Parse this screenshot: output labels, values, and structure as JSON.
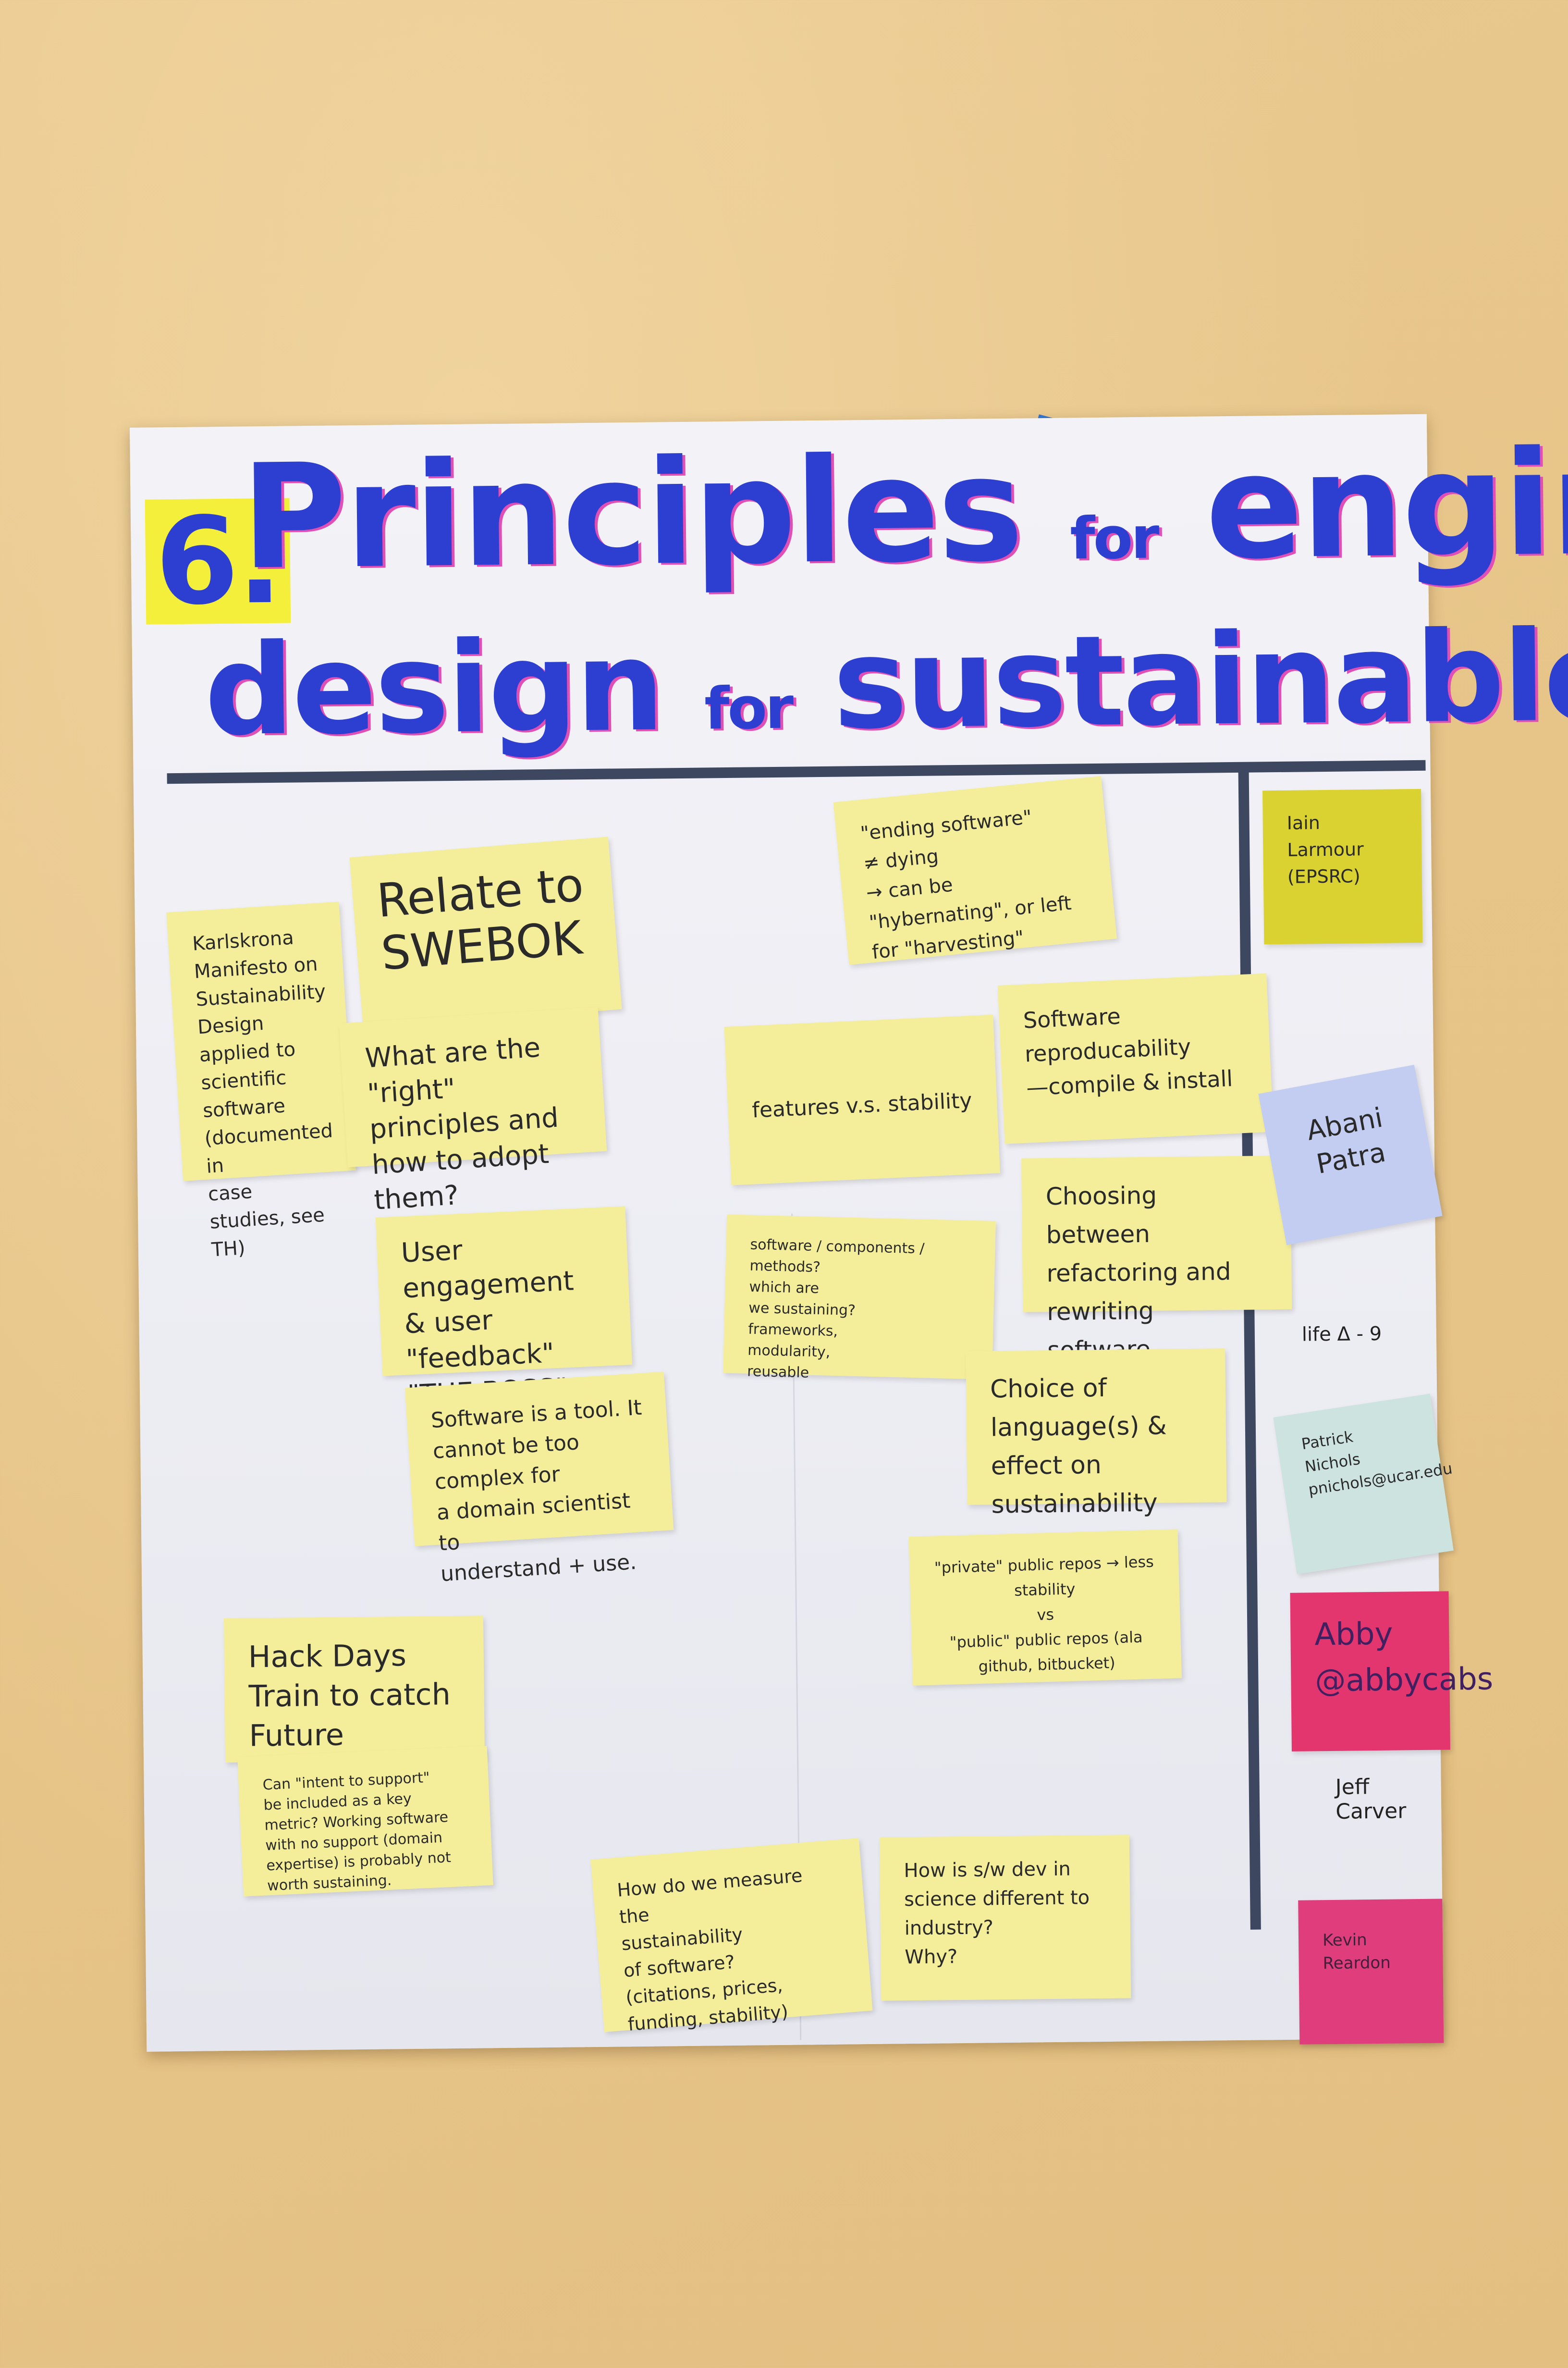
{
  "poster": {
    "number": "6.",
    "title_line1_a": "Principles",
    "title_line1_for": "for",
    "title_line1_b": "engineering",
    "title_line2_a": "design",
    "title_line2_for": "for",
    "title_line2_b": "sustainable software"
  },
  "notes": {
    "karlskrona": "Karlskrona\nManifesto on\nSustainability\nDesign\napplied to\nscientific software\n(documented in\ncase studies, see TH)",
    "swebok": "Relate to\nSWEBOK",
    "right_principles": "What are the \"right\"\nprinciples and\nhow to adopt them?",
    "ending_software": "\"ending software\"\n≠ dying\n→ can be \"hybernating\", or left\nfor \"harvesting\"",
    "features_stability": "features v.s. stability",
    "reproducibility": "Software\nreproducability\n—compile & install",
    "refactoring": "Choosing between\nrefactoring and\nrewriting software.",
    "user_engagement": "User engagement\n& user \"feedback\"\n\"THE BOSS\"",
    "software_tool": "Software is a tool. It\ncannot be too complex for\na domain scientist to\nunderstand + use.",
    "sustaining": "software / components / methods?\nwhich are\nwe sustaining?\nframeworks,\nmodularity,\nreusable",
    "language": "Choice of\nlanguage(s) &\neffect on sustainability",
    "repos": "\"private\" public repos → less stability\nvs\n\"public\" public repos (ala github, bitbucket)",
    "hack_days": "Hack Days\nTrain to catch\nFuture Developers",
    "intent_support": "Can \"intent to support\"\nbe included as a key\nmetric? Working software\nwith no support (domain\nexpertise) is probably not\nworth sustaining.",
    "measure": "How do we measure the\nsustainability\nof software?\n(citations, prices, funding, stability)",
    "sw_dev_science": "How is s/w dev in\nscience different to\nindustry?\nWhy?"
  },
  "names": {
    "iain": "Iain\nLarmour\n(EPSRC)",
    "abani": "Abani\nPatra",
    "life": "life Δ - 9",
    "patrick": "Patrick Nichols\npnichols@ucar.edu",
    "abby": "Abby\n@abbycabs",
    "jeff": "Jeff Carver",
    "kevin": "Kevin Reardon"
  },
  "colors": {
    "title_blue": "#2d3fd0",
    "title_pink": "#e04fb6",
    "highlight_yellow": "#f4ef3a",
    "note_yellow": "#f4ee9a",
    "tape_blue": "#1f6fe0",
    "rule_dark": "#3d4760"
  }
}
